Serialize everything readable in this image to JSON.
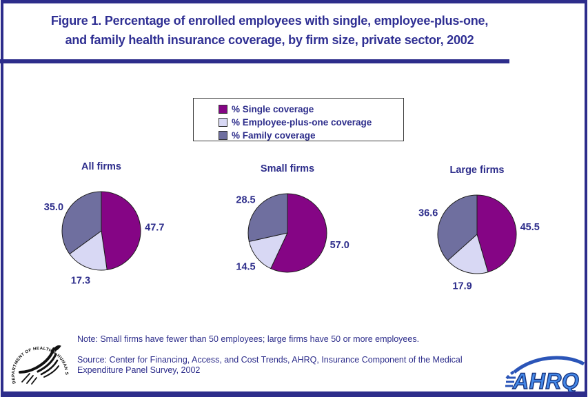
{
  "figure": {
    "title_line1": "Figure 1. Percentage of enrolled employees with single, employee-plus-one,",
    "title_line2": "and family health insurance coverage, by firm size, private sector, 2002"
  },
  "legend": {
    "items": [
      {
        "label": "% Single coverage",
        "color": "#850585"
      },
      {
        "label": "% Employee-plus-one coverage",
        "color": "#d8d8f4"
      },
      {
        "label": "% Family coverage",
        "color": "#6f6f9f"
      }
    ]
  },
  "chart_data": [
    {
      "type": "pie",
      "title": "All firms",
      "categories": [
        "% Single coverage",
        "% Employee-plus-one coverage",
        "% Family coverage"
      ],
      "values": [
        47.7,
        17.3,
        35.0
      ],
      "colors": [
        "#850585",
        "#d8d8f4",
        "#6f6f9f"
      ],
      "start_angle": "12 o'clock",
      "direction": "clockwise",
      "data_labels": true
    },
    {
      "type": "pie",
      "title": "Small firms",
      "categories": [
        "% Single coverage",
        "% Employee-plus-one coverage",
        "% Family coverage"
      ],
      "values": [
        57.0,
        14.5,
        28.5
      ],
      "colors": [
        "#850585",
        "#d8d8f4",
        "#6f6f9f"
      ],
      "start_angle": "12 o'clock",
      "direction": "clockwise",
      "data_labels": true
    },
    {
      "type": "pie",
      "title": "Large firms",
      "categories": [
        "% Single coverage",
        "% Employee-plus-one coverage",
        "% Family coverage"
      ],
      "values": [
        45.5,
        17.9,
        36.6
      ],
      "colors": [
        "#850585",
        "#d8d8f4",
        "#6f6f9f"
      ],
      "start_angle": "12 o'clock",
      "direction": "clockwise",
      "data_labels": true
    }
  ],
  "notes": {
    "note": "Note: Small firms have fewer than 50 employees; large firms have 50 or more employees.",
    "source": "Source: Center for Financing, Access, and Cost Trends, AHRQ, Insurance Component of the Medical Expenditure Panel Survey, 2002"
  },
  "logos": {
    "hhs_arc_text": "DEPARTMENT OF HEALTH & HUMAN SERVICES · USA",
    "ahrq_text": "AHRQ"
  },
  "colors": {
    "navy_text": "#2d2d8b",
    "frame_border": "#2d2d8b",
    "slice_outline": "#1f1f1f",
    "ahrq_fill": "#4488e8",
    "ahrq_outline": "#16337e",
    "ahrq_swoosh": "#2b55b8"
  }
}
